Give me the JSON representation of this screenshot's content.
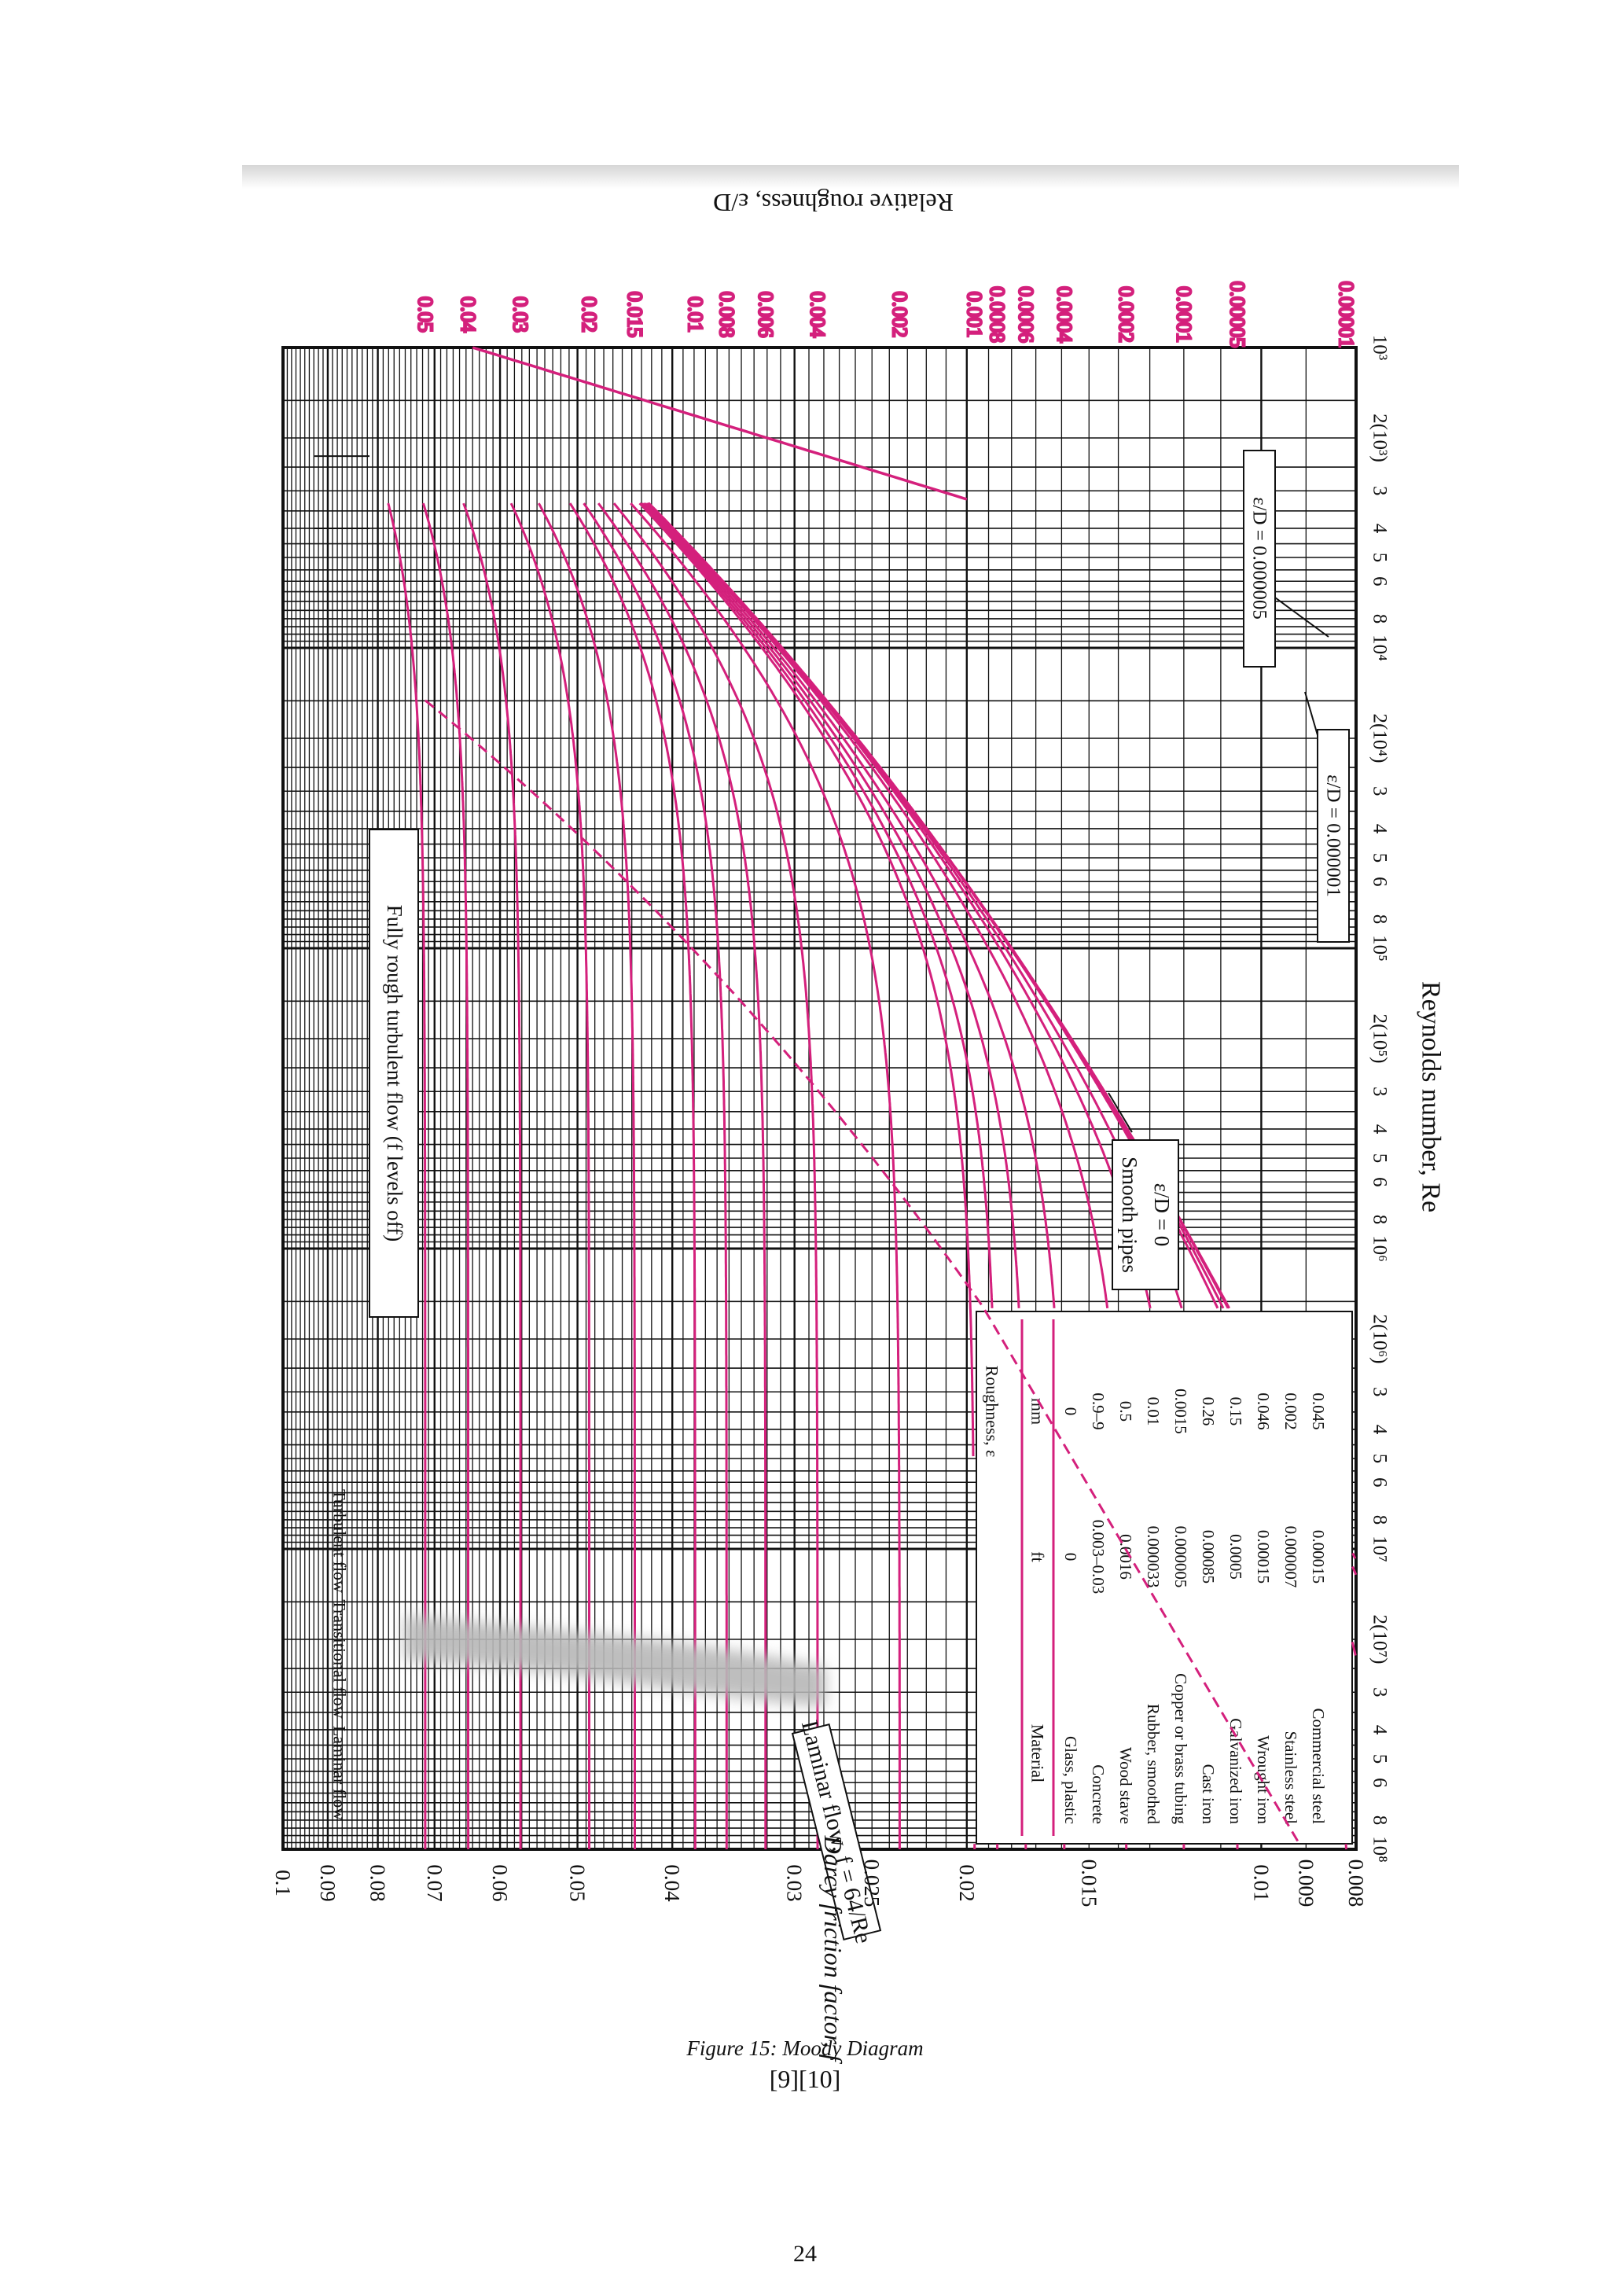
{
  "caption": {
    "label": "Figure 15:",
    "title": "Moody Diagram",
    "refs": "[9][10]"
  },
  "page_number": "24",
  "chart_data": {
    "type": "line",
    "title": "",
    "orientation": "rotated 90 degrees clockwise on the page",
    "xlabel": "Reynolds number, Re",
    "ylabel": "Darcy friction factor, f",
    "right_label": "Relative roughness, ε/D",
    "xscale": "log",
    "yscale": "log",
    "xlim": [
      1000,
      100000000
    ],
    "ylim": [
      0.008,
      0.1
    ],
    "grid": true,
    "x_tick_labels": [
      {
        "v": 1000,
        "t": "10³"
      },
      {
        "v": 2000,
        "t": "2(10³)"
      },
      {
        "v": 3000,
        "t": "3"
      },
      {
        "v": 4000,
        "t": "4"
      },
      {
        "v": 5000,
        "t": "5"
      },
      {
        "v": 6000,
        "t": "6"
      },
      {
        "v": 8000,
        "t": "8"
      },
      {
        "v": 10000,
        "t": "10⁴"
      },
      {
        "v": 20000,
        "t": "2(10⁴)"
      },
      {
        "v": 30000,
        "t": "3"
      },
      {
        "v": 40000,
        "t": "4"
      },
      {
        "v": 50000,
        "t": "5"
      },
      {
        "v": 60000,
        "t": "6"
      },
      {
        "v": 80000,
        "t": "8"
      },
      {
        "v": 100000,
        "t": "10⁵"
      },
      {
        "v": 200000,
        "t": "2(10⁵)"
      },
      {
        "v": 300000,
        "t": "3"
      },
      {
        "v": 400000,
        "t": "4"
      },
      {
        "v": 500000,
        "t": "5"
      },
      {
        "v": 600000,
        "t": "6"
      },
      {
        "v": 800000,
        "t": "8"
      },
      {
        "v": 1000000,
        "t": "10⁶"
      },
      {
        "v": 2000000,
        "t": "2(10⁶)"
      },
      {
        "v": 3000000,
        "t": "3"
      },
      {
        "v": 4000000,
        "t": "4"
      },
      {
        "v": 5000000,
        "t": "5"
      },
      {
        "v": 6000000,
        "t": "6"
      },
      {
        "v": 8000000,
        "t": "8"
      },
      {
        "v": 10000000,
        "t": "10⁷"
      },
      {
        "v": 20000000,
        "t": "2(10⁷)"
      },
      {
        "v": 30000000,
        "t": "3"
      },
      {
        "v": 40000000,
        "t": "4"
      },
      {
        "v": 50000000,
        "t": "5"
      },
      {
        "v": 60000000,
        "t": "6"
      },
      {
        "v": 80000000,
        "t": "8"
      },
      {
        "v": 100000000,
        "t": "10⁸"
      }
    ],
    "y_tick_labels": [
      {
        "v": 0.1,
        "t": "0.1"
      },
      {
        "v": 0.09,
        "t": "0.09"
      },
      {
        "v": 0.08,
        "t": "0.08"
      },
      {
        "v": 0.07,
        "t": "0.07"
      },
      {
        "v": 0.06,
        "t": "0.06"
      },
      {
        "v": 0.05,
        "t": "0.05"
      },
      {
        "v": 0.04,
        "t": "0.04"
      },
      {
        "v": 0.03,
        "t": "0.03"
      },
      {
        "v": 0.025,
        "t": "0.025"
      },
      {
        "v": 0.02,
        "t": "0.02"
      },
      {
        "v": 0.015,
        "t": "0.015"
      },
      {
        "v": 0.01,
        "t": "0.01"
      },
      {
        "v": 0.009,
        "t": "0.009"
      },
      {
        "v": 0.008,
        "t": "0.008"
      }
    ],
    "roughness_curves": [
      {
        "label": "0.05",
        "eD": 0.05
      },
      {
        "label": "0.04",
        "eD": 0.04
      },
      {
        "label": "0.03",
        "eD": 0.03
      },
      {
        "label": "0.02",
        "eD": 0.02
      },
      {
        "label": "0.015",
        "eD": 0.015
      },
      {
        "label": "0.01",
        "eD": 0.01
      },
      {
        "label": "0.008",
        "eD": 0.008
      },
      {
        "label": "0.006",
        "eD": 0.006
      },
      {
        "label": "0.004",
        "eD": 0.004
      },
      {
        "label": "0.002",
        "eD": 0.002
      },
      {
        "label": "0.001",
        "eD": 0.001
      },
      {
        "label": "0.0008",
        "eD": 0.0008
      },
      {
        "label": "0.0006",
        "eD": 0.0006
      },
      {
        "label": "0.0004",
        "eD": 0.0004
      },
      {
        "label": "0.0002",
        "eD": 0.0002
      },
      {
        "label": "0.0001",
        "eD": 0.0001
      },
      {
        "label": "0.00005",
        "eD": 5e-05
      },
      {
        "label": "0.00001",
        "eD": 1e-05
      },
      {
        "label": "",
        "eD": 5e-06
      },
      {
        "label": "",
        "eD": 1e-06
      },
      {
        "label": "",
        "eD": 0
      }
    ],
    "laminar": {
      "equation": "f = 64/Re",
      "label": "Laminar flow, f = 64/Re",
      "re_range": [
        1000,
        3200
      ]
    },
    "fully_rough_boundary_label": "Fully rough turbulent flow (f levels off)",
    "flow_regions": [
      "Laminar flow",
      "Transitional flow",
      "Turbulent flow"
    ],
    "annotations": {
      "smooth_pipes": "Smooth pipes",
      "smooth_eD": "ε/D = 0",
      "eD_5e6": "ε/D = 0.000005",
      "eD_1e6": "ε/D = 0.000001"
    },
    "table": {
      "headers": [
        "Material",
        "ft",
        "mm"
      ],
      "group_header": "Roughness, ε",
      "rows": [
        [
          "Glass, plastic",
          "0",
          "0"
        ],
        [
          "Concrete",
          "0.003–0.03",
          "0.9–9"
        ],
        [
          "Wood stave",
          "0.0016",
          "0.5"
        ],
        [
          "Rubber, smoothed",
          "0.000033",
          "0.01"
        ],
        [
          "Copper or brass tubing",
          "0.000005",
          "0.0015"
        ],
        [
          "Cast iron",
          "0.00085",
          "0.26"
        ],
        [
          "Galvanized iron",
          "0.0005",
          "0.15"
        ],
        [
          "Wrought iron",
          "0.00015",
          "0.046"
        ],
        [
          "Stainless steel",
          "0.000007",
          "0.002"
        ],
        [
          "Commercial steel",
          "0.00015",
          "0.045"
        ]
      ]
    },
    "colors": {
      "curve": "#d4207c",
      "grid": "#111111",
      "background": "#ffffff"
    }
  }
}
